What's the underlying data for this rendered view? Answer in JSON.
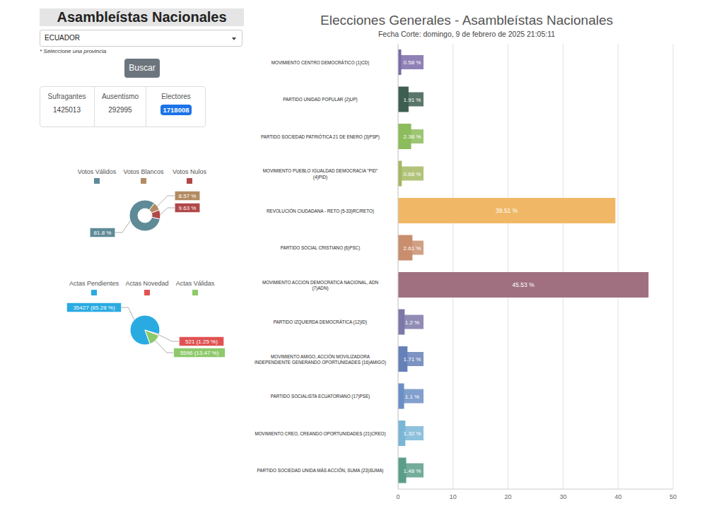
{
  "panel": {
    "title": "Asambleístas Nacionales",
    "select": "ECUADOR",
    "hint": "* Seleccione una provincia",
    "button": "Buscar",
    "stats": [
      {
        "label": "Sufragantes",
        "value": 1425013
      },
      {
        "label": "Ausentismo",
        "value": 292995
      },
      {
        "label": "Electores",
        "value": 1718008
      }
    ]
  },
  "chart_data": [
    {
      "type": "donut",
      "categories": [
        "Votos Válidos",
        "Votos Blancos",
        "Votos Nulos"
      ],
      "values": [
        81.8,
        8.57,
        9.63
      ],
      "value_labels": [
        "81.8 %",
        "8.57 %",
        "9.63 %"
      ],
      "colors": [
        "#5f8a98",
        "#b38b62",
        "#b04848"
      ],
      "data_labels": true,
      "legend": "top"
    },
    {
      "type": "pie",
      "categories": [
        "Actas Pendientes",
        "Actas Novedad",
        "Actas Válidas"
      ],
      "values": [
        35427,
        521,
        5596
      ],
      "value_labels": [
        "35427 (85.28 %)",
        "521 (1.25 %)",
        "5596 (13.47 %)"
      ],
      "colors": [
        "#29abe2",
        "#e05252",
        "#8dc96a"
      ],
      "data_labels": true,
      "legend": "top"
    },
    {
      "type": "bar",
      "title": "Elecciones Generales - Asambleístas Nacionales",
      "subtitle": "Fecha Corte: domingo, 9 de febrero de 2025 21:05:11",
      "orientation": "horizontal",
      "categories": [
        "MOVIMIENTO CENTRO DEMOCRÁTICO (1)CD)",
        "PARTIDO UNIDAD POPULAR (2)UP)",
        "PARTIDO SOCIEDAD PATRIÓTICA 21 DE ENERO (3)PSP)",
        "MOVIMIENTO PUEBLO IGUALDAD DEMOCRACIA \"PID\" (4)PID)",
        "REVOLUCIÓN CIUDADANA - RETO (5-33)RC/RETO)",
        "PARTIDO SOCIAL CRISTIANO (6)PSC)",
        "MOVIMIENTO ACCION DEMOCRATICA NACIONAL, ADN (7)ADN)",
        "PARTIDO IZQUIERDA DEMOCRÁTICA (12)ID)",
        "MOVIMIENTO AMIGO, ACCIÓN MOVILIZADORA INDEPENDIENTE GENERANDO OPORTUNIDADES (16)AMIGO)",
        "PARTIDO SOCIALISTA ECUATORIANO (17)PSE)",
        "MOVIMIENTO CREO, CREANDO OPORTUNIDADES (21)CREO)",
        "PARTIDO SOCIEDAD UNIDA MÁS ACCIÓN, SUMA (23)SUMA)"
      ],
      "values": [
        0.58,
        1.91,
        2.38,
        0.68,
        39.51,
        2.61,
        45.53,
        1.2,
        1.71,
        1.1,
        1.32,
        1.48
      ],
      "value_labels": [
        "0.58 %",
        "1.91 %",
        "2.38 %",
        "0.68 %",
        "39.51 %",
        "2.61 %",
        "45.53 %",
        "1.2 %",
        "1.71 %",
        "1.1 %",
        "1.32 %",
        "1.48 %"
      ],
      "colors": [
        "#7b6aa8",
        "#3d5e50",
        "#8cbc5c",
        "#a3b862",
        "#f0b866",
        "#c98e6e",
        "#a07080",
        "#7c78a8",
        "#6680b8",
        "#6b8fc4",
        "#79b6d6",
        "#5a9e8a"
      ],
      "xlim": [
        0,
        50
      ],
      "xticks": [
        0,
        10,
        20,
        30,
        40,
        50
      ],
      "grid": true,
      "data_labels": true
    }
  ]
}
